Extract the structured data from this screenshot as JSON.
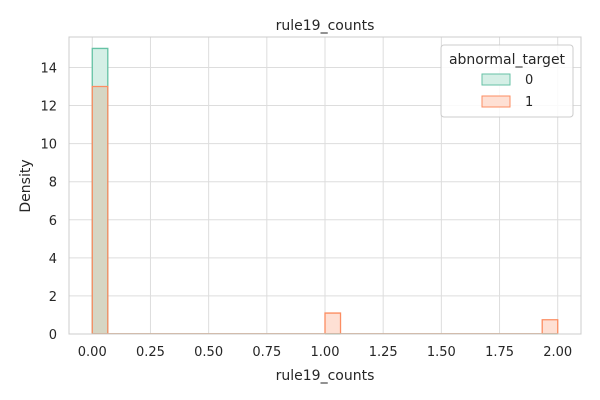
{
  "chart_data": {
    "type": "bar",
    "title": "rule19_counts",
    "xlabel": "rule19_counts",
    "ylabel": "Density",
    "xlim": [
      -0.1,
      2.1
    ],
    "ylim": [
      0,
      15.6
    ],
    "xticks": [
      0.0,
      0.25,
      0.5,
      0.75,
      1.0,
      1.25,
      1.5,
      1.75,
      2.0
    ],
    "xtick_labels": [
      "0.00",
      "0.25",
      "0.50",
      "0.75",
      "1.00",
      "1.25",
      "1.50",
      "1.75",
      "2.00"
    ],
    "yticks": [
      0,
      2,
      4,
      6,
      8,
      10,
      12,
      14
    ],
    "ytick_labels": [
      "0",
      "2",
      "4",
      "6",
      "8",
      "10",
      "12",
      "14"
    ],
    "grid": true,
    "bin_width": 0.0667,
    "legend": {
      "title": "abnormal_target",
      "placement": "top-right",
      "entries": [
        "0",
        "1"
      ]
    },
    "series": [
      {
        "label": "0",
        "edge_color": "#66c2a5",
        "fill_color": "#d5efe6",
        "bins": [
          {
            "x0": 0.0,
            "x1": 0.0667,
            "density": 15.0
          },
          {
            "x0": 1.0,
            "x1": 1.0667,
            "density": 0.0
          },
          {
            "x0": 1.9333,
            "x1": 2.0,
            "density": 0.0
          }
        ]
      },
      {
        "label": "1",
        "edge_color": "#fc8d62",
        "fill_color": "#fee0d4",
        "bins": [
          {
            "x0": 0.0,
            "x1": 0.0667,
            "density": 13.0
          },
          {
            "x0": 1.0,
            "x1": 1.0667,
            "density": 1.1
          },
          {
            "x0": 1.9333,
            "x1": 2.0,
            "density": 0.75
          }
        ]
      }
    ],
    "overlap_fill_color": "#d6d6c4"
  }
}
